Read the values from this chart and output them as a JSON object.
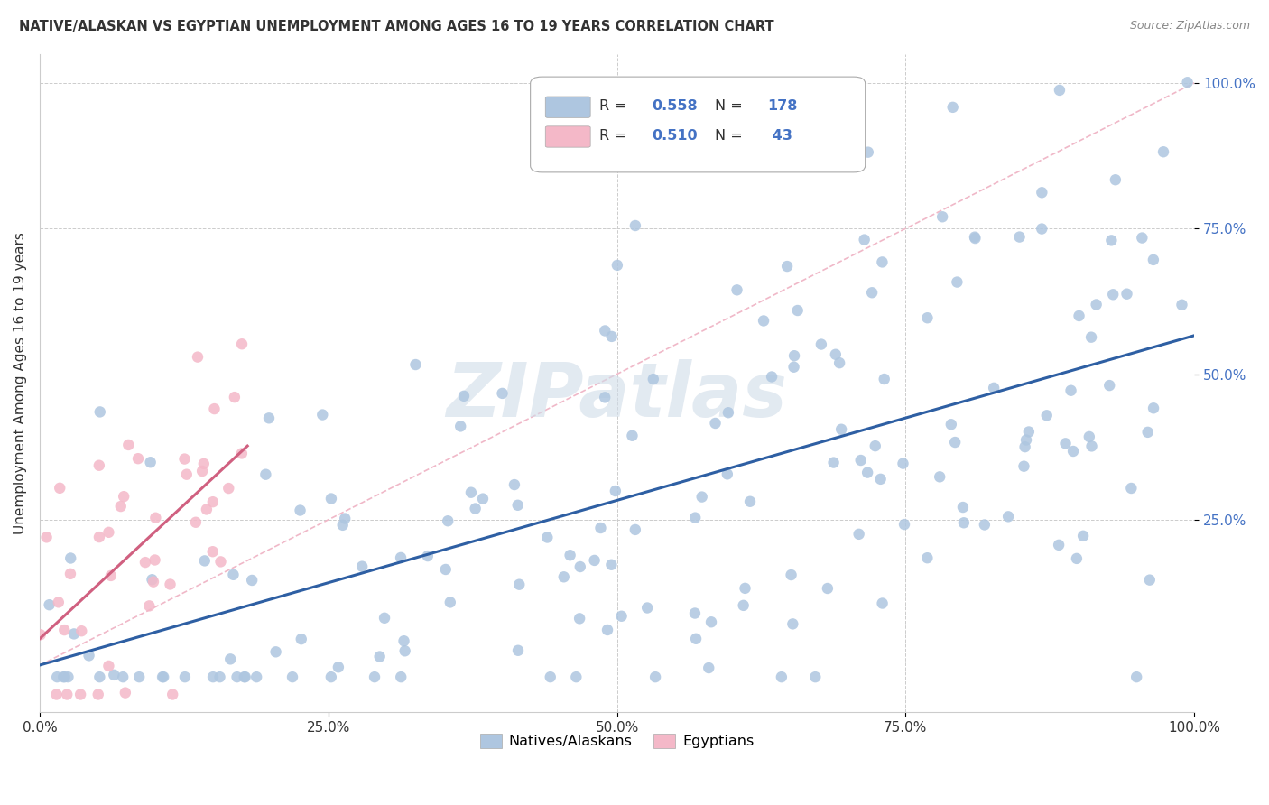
{
  "title": "NATIVE/ALASKAN VS EGYPTIAN UNEMPLOYMENT AMONG AGES 16 TO 19 YEARS CORRELATION CHART",
  "source": "Source: ZipAtlas.com",
  "ylabel": "Unemployment Among Ages 16 to 19 years",
  "native_color": "#aec6e0",
  "native_edge_color": "#aec6e0",
  "egyptian_color": "#f4b8c8",
  "egyptian_edge_color": "#f4b8c8",
  "native_R": 0.558,
  "native_N": 178,
  "egyptian_R": 0.51,
  "egyptian_N": 43,
  "regression_line_color_native": "#2e5fa3",
  "regression_line_color_egyptian": "#d06080",
  "diagonal_color": "#f0b8c8",
  "legend_R_color": "#4472c4",
  "legend_N_color": "#4472c4",
  "watermark": "ZIPatlas",
  "watermark_color": "#d0dce8"
}
